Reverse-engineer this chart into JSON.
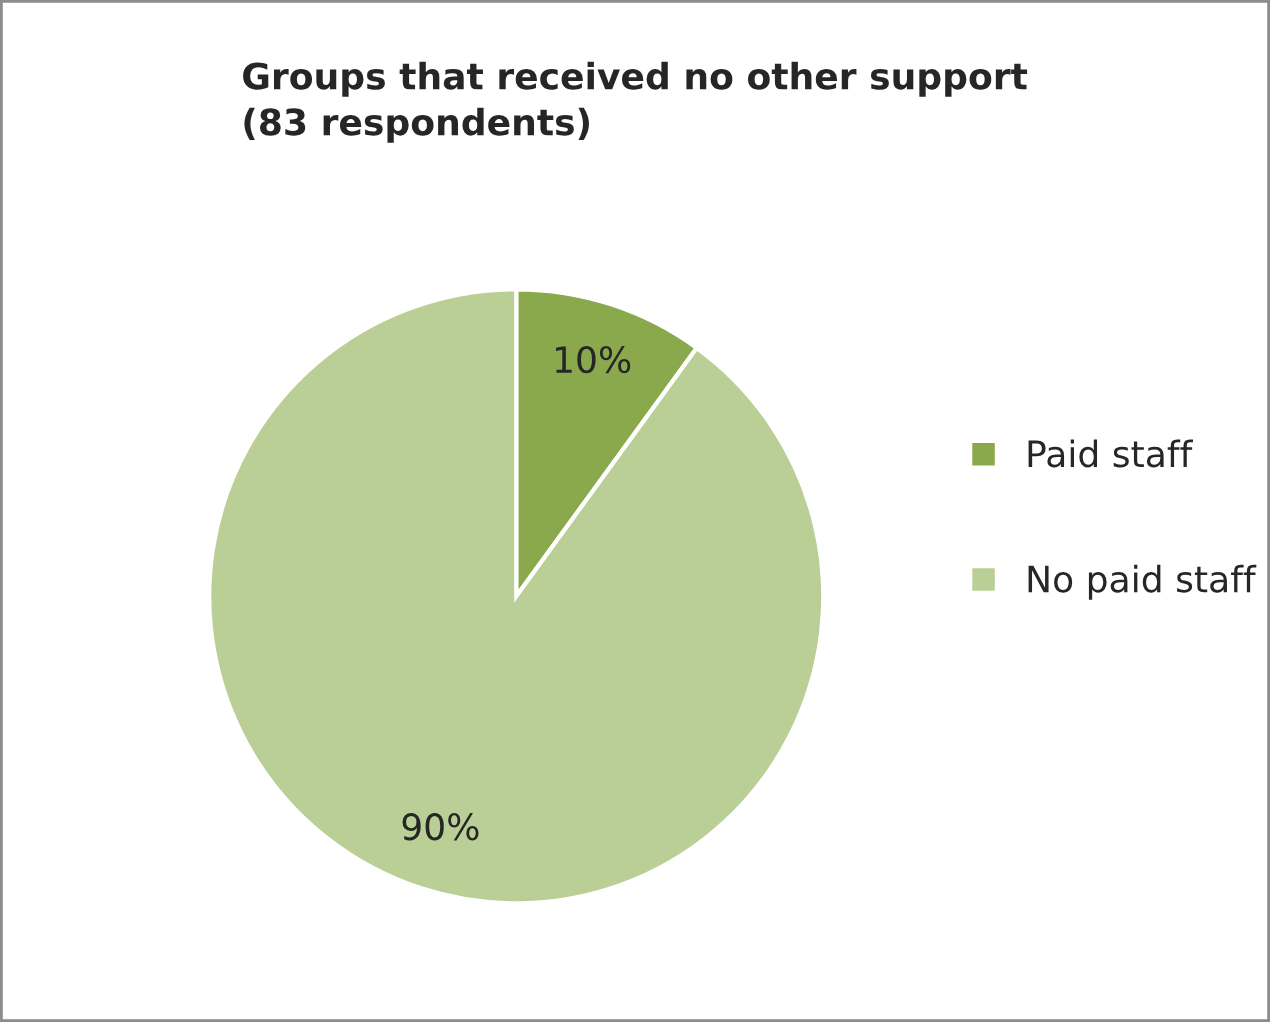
{
  "chart_data": {
    "type": "pie",
    "title": "Groups that received no other support\n(83 respondents)",
    "categories": [
      "Paid staff",
      "No paid staff"
    ],
    "values": [
      10,
      90
    ],
    "colors": [
      "#8aa84c",
      "#bacf95"
    ],
    "value_labels": [
      "10%",
      "90%"
    ],
    "legend": "right"
  }
}
